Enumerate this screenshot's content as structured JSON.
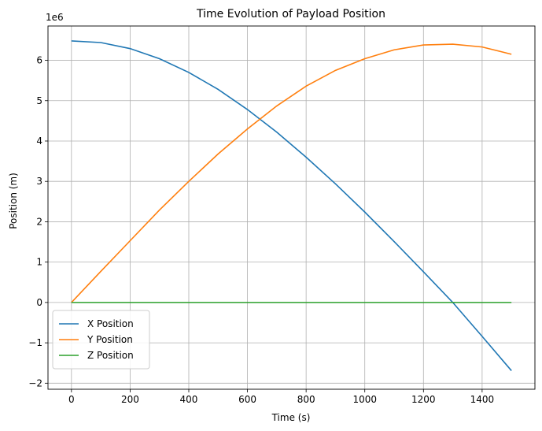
{
  "chart_data": {
    "type": "line",
    "title": "Time Evolution of Payload Position",
    "xlabel": "Time (s)",
    "ylabel": "Position (m)",
    "y_offset_label": "1e6",
    "y_scale_factor": 1000000,
    "xlim": [
      -80,
      1580
    ],
    "ylim": [
      -2150000,
      6850000
    ],
    "x_ticks": [
      0,
      200,
      400,
      600,
      800,
      1000,
      1200,
      1400
    ],
    "x_tick_labels": [
      "0",
      "200",
      "400",
      "600",
      "800",
      "1000",
      "1200",
      "1400"
    ],
    "y_ticks": [
      -2,
      -1,
      0,
      1,
      2,
      3,
      4,
      5,
      6
    ],
    "y_tick_labels": [
      "−2",
      "−1",
      "0",
      "1",
      "2",
      "3",
      "4",
      "5",
      "6"
    ],
    "grid": true,
    "legend_position": "lower-left",
    "x": [
      0,
      100,
      200,
      300,
      400,
      500,
      600,
      700,
      800,
      900,
      1000,
      1100,
      1200,
      1300,
      1400,
      1500
    ],
    "series": [
      {
        "name": "X Position",
        "color": "#1f77b4",
        "values": [
          6480000,
          6440000,
          6290000,
          6040000,
          5700000,
          5280000,
          4780000,
          4220000,
          3600000,
          2940000,
          2240000,
          1510000,
          760000,
          0,
          -840000,
          -1690000
        ]
      },
      {
        "name": "Y Position",
        "color": "#ff7f0e",
        "values": [
          0,
          770000,
          1530000,
          2290000,
          3000000,
          3680000,
          4300000,
          4870000,
          5360000,
          5750000,
          6040000,
          6260000,
          6380000,
          6400000,
          6330000,
          6150000
        ]
      },
      {
        "name": "Z Position",
        "color": "#2ca02c",
        "values": [
          0,
          0,
          0,
          0,
          0,
          0,
          0,
          0,
          0,
          0,
          0,
          0,
          0,
          0,
          0,
          0
        ]
      }
    ]
  }
}
